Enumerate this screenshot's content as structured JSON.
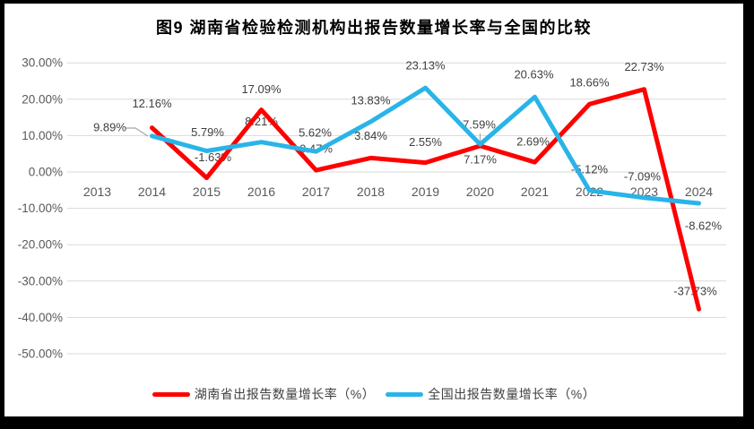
{
  "chart_data": {
    "type": "line",
    "title": "图9 湖南省检验检测机构出报告数量增长率与全国的比较",
    "categories": [
      "2013",
      "2014",
      "2015",
      "2016",
      "2017",
      "2018",
      "2019",
      "2020",
      "2021",
      "2022",
      "2023",
      "2024"
    ],
    "y_axis": {
      "tick_labels": [
        "30.00%",
        "20.00%",
        "10.00%",
        "0.00%",
        "-10.00%",
        "-20.00%",
        "-30.00%",
        "-40.00%",
        "-50.00%"
      ],
      "tick_values": [
        30,
        20,
        10,
        0,
        -10,
        -20,
        -30,
        -40,
        -50
      ],
      "ylim": [
        -50,
        30
      ],
      "format": "percent"
    },
    "grid": true,
    "legend_position": "bottom",
    "series": [
      {
        "name": "湖南省出报告数量增长率（%）",
        "color": "#ff0000",
        "start_index": 1,
        "values": [
          12.16,
          -1.63,
          17.09,
          0.47,
          3.84,
          2.55,
          7.17,
          2.69,
          18.66,
          22.73,
          -37.73
        ],
        "point_labels": [
          "12.16%",
          "-1.63%",
          "17.09%",
          "0.47%",
          "3.84%",
          "2.55%",
          "7.17%",
          "2.69%",
          "18.66%",
          "22.73%",
          "-37.73%"
        ]
      },
      {
        "name": "全国出报告数量增长率（%）",
        "color": "#29b4e8",
        "start_index": 1,
        "values": [
          9.89,
          5.79,
          8.21,
          5.62,
          13.83,
          23.13,
          7.59,
          20.63,
          -5.12,
          -7.09,
          -8.62
        ],
        "point_labels": [
          "9.89%",
          "5.79%",
          "8.21%",
          "5.62%",
          "13.83%",
          "23.13%",
          "7.59%",
          "20.63%",
          "-5.12%",
          "-7.09%",
          "-8.62%"
        ]
      }
    ],
    "colors": {
      "hunan_series": "#ff0000",
      "national_series": "#29b4e8",
      "gridline": "#d9d9d9",
      "axis_text": "#595959",
      "leader_line": "#a6a6a6",
      "frame": "#000000"
    }
  }
}
